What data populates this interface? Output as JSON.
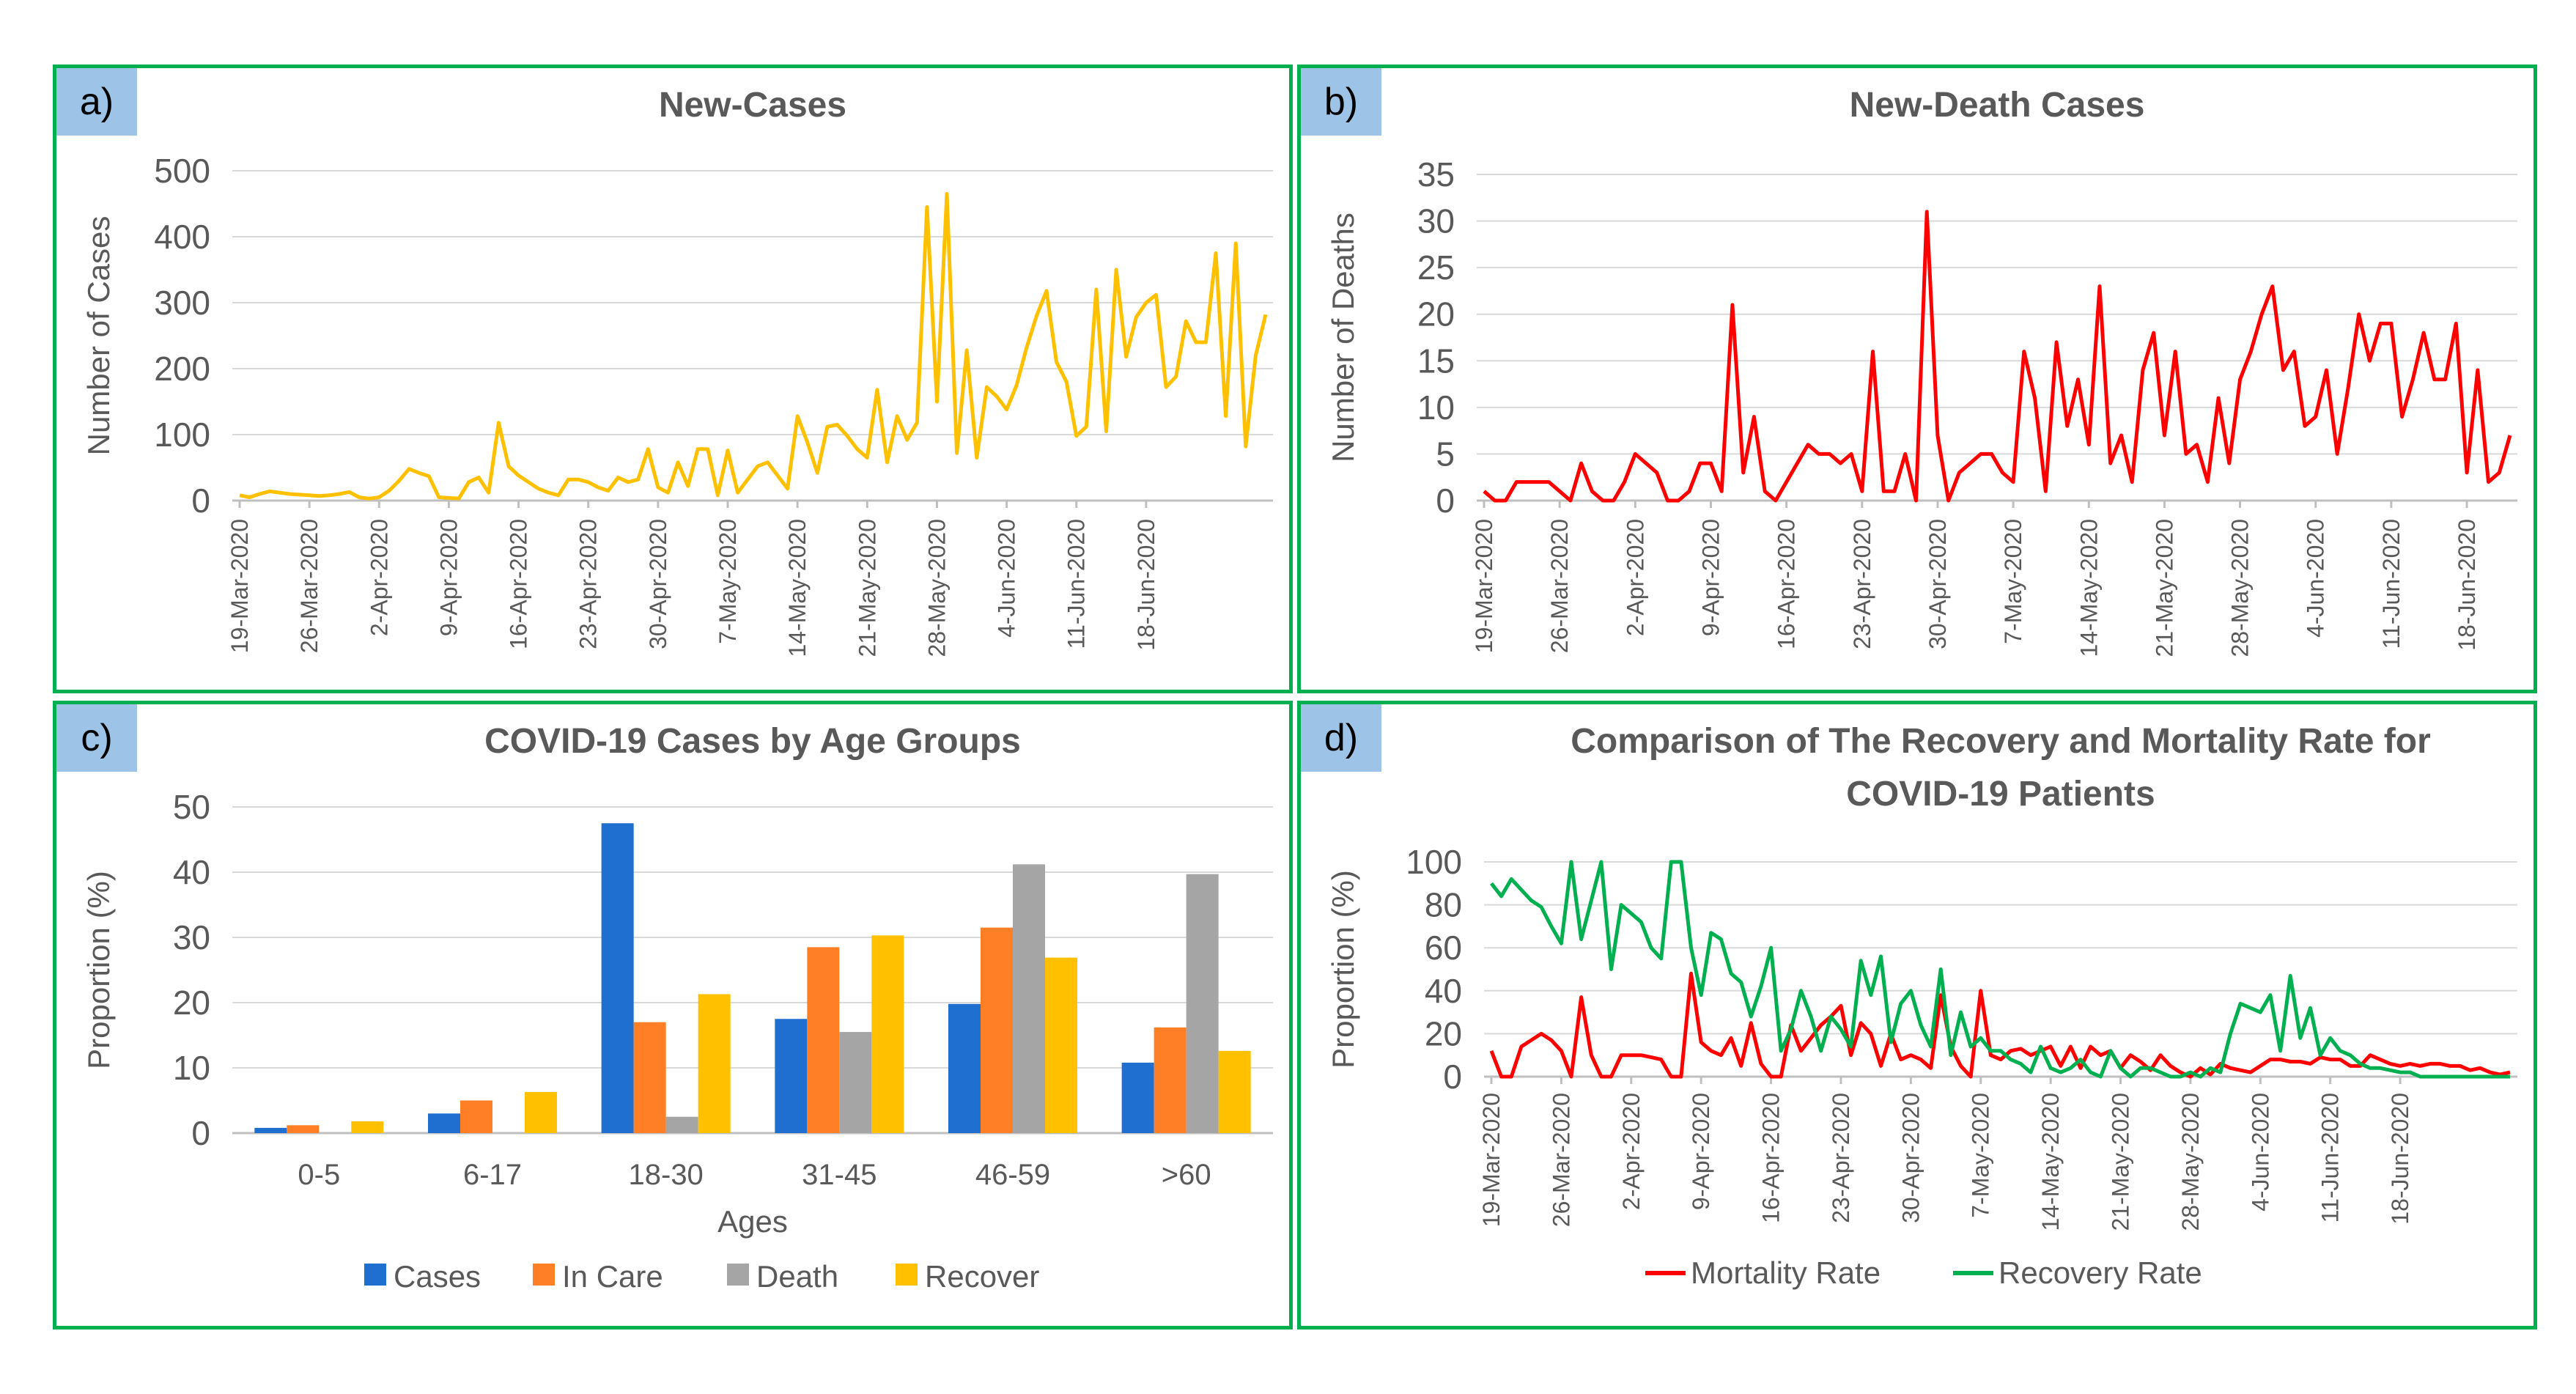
{
  "panels": {
    "a": {
      "label": "a)"
    },
    "b": {
      "label": "b)"
    },
    "c": {
      "label": "c)"
    },
    "d": {
      "label": "d)"
    }
  },
  "chart_data": [
    {
      "id": "a",
      "type": "line",
      "title": "New-Cases",
      "xlabel": "",
      "ylabel": "Number of Cases",
      "ylim": [
        0,
        500
      ],
      "yticks": [
        0,
        100,
        200,
        300,
        400,
        500
      ],
      "color": "#ffc000",
      "x_tick_labels": [
        "19-Mar-2020",
        "26-Mar-2020",
        "2-Apr-2020",
        "9-Apr-2020",
        "16-Apr-2020",
        "23-Apr-2020",
        "30-Apr-2020",
        "7-May-2020",
        "14-May-2020",
        "21-May-2020",
        "28-May-2020",
        "4-Jun-2020",
        "11-Jun-2020",
        "18-Jun-2020"
      ],
      "series": [
        {
          "name": "New-Cases",
          "values": [
            8,
            5,
            10,
            14,
            12,
            10,
            9,
            8,
            7,
            8,
            10,
            13,
            5,
            3,
            5,
            15,
            30,
            48,
            42,
            37,
            5,
            4,
            3,
            28,
            35,
            12,
            118,
            52,
            38,
            28,
            18,
            12,
            8,
            32,
            32,
            28,
            20,
            15,
            35,
            28,
            32,
            78,
            20,
            12,
            58,
            22,
            78,
            78,
            8,
            76,
            12,
            32,
            52,
            58,
            38,
            18,
            128,
            88,
            42,
            112,
            115,
            98,
            78,
            65,
            168,
            58,
            128,
            92,
            118,
            445,
            150,
            465,
            72,
            228,
            65,
            172,
            158,
            138,
            175,
            232,
            280,
            318,
            210,
            180,
            98,
            112,
            320,
            105,
            350,
            218,
            278,
            300,
            312,
            172,
            188,
            272,
            240,
            240,
            375,
            128,
            390,
            82,
            220,
            282
          ]
        }
      ]
    },
    {
      "id": "b",
      "type": "line",
      "title": "New-Death Cases",
      "xlabel": "",
      "ylabel": "Number of Deaths",
      "ylim": [
        0,
        35
      ],
      "yticks": [
        0,
        5,
        10,
        15,
        20,
        25,
        30,
        35
      ],
      "color": "#ff0000",
      "x_tick_labels": [
        "19-Mar-2020",
        "26-Mar-2020",
        "2-Apr-2020",
        "9-Apr-2020",
        "16-Apr-2020",
        "23-Apr-2020",
        "30-Apr-2020",
        "7-May-2020",
        "14-May-2020",
        "21-May-2020",
        "28-May-2020",
        "4-Jun-2020",
        "11-Jun-2020",
        "18-Jun-2020"
      ],
      "series": [
        {
          "name": "New-Death Cases",
          "values": [
            1,
            0,
            0,
            2,
            2,
            2,
            2,
            1,
            0,
            4,
            1,
            0,
            0,
            2,
            5,
            4,
            3,
            0,
            0,
            1,
            4,
            4,
            1,
            21,
            3,
            9,
            1,
            0,
            2,
            4,
            6,
            5,
            5,
            4,
            5,
            1,
            16,
            1,
            1,
            5,
            0,
            31,
            7,
            0,
            3,
            4,
            5,
            5,
            3,
            2,
            16,
            11,
            1,
            17,
            8,
            13,
            6,
            23,
            4,
            7,
            2,
            14,
            18,
            7,
            16,
            5,
            6,
            2,
            11,
            4,
            13,
            16,
            20,
            23,
            14,
            16,
            8,
            9,
            14,
            5,
            12,
            20,
            15,
            19,
            19,
            9,
            13,
            18,
            13,
            13,
            19,
            3,
            14,
            2,
            3,
            7
          ]
        }
      ]
    },
    {
      "id": "c",
      "type": "bar",
      "title": "COVID-19 Cases by Age Groups",
      "xlabel": "Ages",
      "ylabel": "Proportion (%)",
      "ylim": [
        0,
        50
      ],
      "yticks": [
        0,
        10,
        20,
        30,
        40,
        50
      ],
      "categories": [
        "0-5",
        "6-17",
        "18-30",
        "31-45",
        "46-59",
        ">60"
      ],
      "series": [
        {
          "name": "Cases",
          "color": "#1f6fd1",
          "values": [
            0.8,
            3.0,
            47.5,
            17.5,
            19.8,
            10.8
          ]
        },
        {
          "name": "In Care",
          "color": "#ff7f27",
          "values": [
            1.2,
            5.0,
            17.0,
            28.5,
            31.5,
            16.2
          ]
        },
        {
          "name": "Death",
          "color": "#a5a5a5",
          "values": [
            0.0,
            0.0,
            2.5,
            15.5,
            41.2,
            39.7
          ]
        },
        {
          "name": "Recover",
          "color": "#ffc000",
          "values": [
            1.8,
            6.3,
            21.3,
            30.3,
            26.9,
            12.6
          ]
        }
      ]
    },
    {
      "id": "d",
      "type": "line",
      "title": "Comparison of The Recovery and Mortality Rate for COVID-19 Patients",
      "title_lines": [
        "Comparison of The Recovery and Mortality Rate for",
        "COVID-19 Patients"
      ],
      "xlabel": "",
      "ylabel": "Proportion (%)",
      "ylim": [
        0,
        100
      ],
      "yticks": [
        0,
        20,
        40,
        60,
        80,
        100
      ],
      "x_tick_labels": [
        "19-Mar-2020",
        "26-Mar-2020",
        "2-Apr-2020",
        "9-Apr-2020",
        "16-Apr-2020",
        "23-Apr-2020",
        "30-Apr-2020",
        "7-May-2020",
        "14-May-2020",
        "21-May-2020",
        "28-May-2020",
        "4-Jun-2020",
        "11-Jun-2020",
        "18-Jun-2020"
      ],
      "series": [
        {
          "name": "Mortality Rate",
          "color": "#ff0000",
          "values": [
            12,
            0,
            0,
            14,
            17,
            20,
            17,
            12,
            0,
            37,
            10,
            0,
            0,
            10,
            10,
            10,
            9,
            8,
            0,
            0,
            48,
            16,
            12,
            10,
            18,
            5,
            25,
            6,
            0,
            0,
            24,
            12,
            18,
            24,
            28,
            33,
            10,
            25,
            20,
            5,
            20,
            8,
            10,
            8,
            4,
            38,
            14,
            5,
            0,
            40,
            10,
            8,
            12,
            13,
            10,
            12,
            14,
            5,
            14,
            4,
            14,
            10,
            12,
            4,
            10,
            7,
            3,
            10,
            5,
            2,
            0,
            4,
            1,
            6,
            4,
            3,
            2,
            5,
            8,
            8,
            7,
            7,
            6,
            9,
            8,
            8,
            5,
            5,
            10,
            8,
            6,
            5,
            6,
            5,
            6,
            6,
            5,
            5,
            3,
            4,
            2,
            1,
            2
          ]
        },
        {
          "name": "Recovery Rate",
          "color": "#00b050",
          "values": [
            90,
            84,
            92,
            87,
            82,
            79,
            70,
            62,
            100,
            64,
            82,
            100,
            50,
            80,
            76,
            72,
            60,
            55,
            100,
            100,
            60,
            38,
            67,
            64,
            48,
            44,
            28,
            42,
            60,
            12,
            22,
            40,
            28,
            12,
            28,
            22,
            14,
            54,
            38,
            56,
            16,
            34,
            40,
            24,
            14,
            50,
            10,
            30,
            14,
            18,
            12,
            12,
            8,
            6,
            2,
            14,
            4,
            2,
            4,
            8,
            2,
            0,
            12,
            4,
            0,
            4,
            4,
            2,
            0,
            0,
            2,
            0,
            4,
            2,
            20,
            34,
            32,
            30,
            38,
            12,
            47,
            18,
            32,
            10,
            18,
            12,
            10,
            6,
            4,
            4,
            3,
            2,
            2,
            0,
            0,
            0,
            0,
            0,
            0,
            0,
            0,
            0,
            0
          ]
        }
      ]
    }
  ]
}
